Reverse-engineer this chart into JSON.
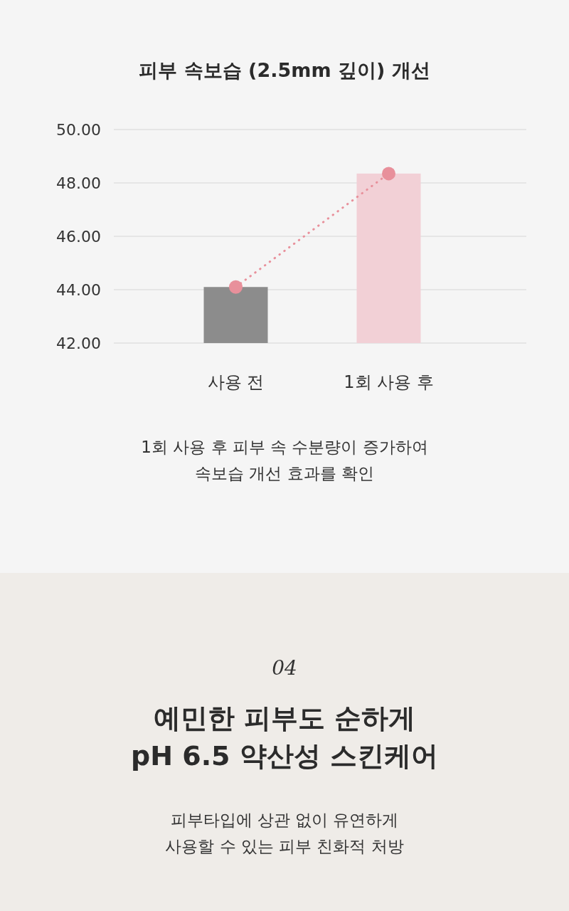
{
  "chart_data": {
    "type": "bar",
    "title": "피부 속보습 (2.5mm 깊이) 개선",
    "categories": [
      "사용 전",
      "1회 사용 후"
    ],
    "series": [
      {
        "colors": [
          "#8c8c8c",
          "#f2d0d6"
        ],
        "values": [
          44.1,
          48.35
        ]
      },
      {
        "type": "line",
        "color": "#e8909b",
        "values": [
          44.1,
          48.35
        ],
        "marker": "circle",
        "line_style": "dotted"
      }
    ],
    "ylim": [
      42,
      50
    ],
    "yticks": [
      {
        "value": 42,
        "label": "42.00"
      },
      {
        "value": 44,
        "label": "44.00"
      },
      {
        "value": 46,
        "label": "46.00"
      },
      {
        "value": 48,
        "label": "48.00"
      },
      {
        "value": 50,
        "label": "50.00"
      }
    ],
    "grid": "y",
    "annotations": [
      "1회 사용 후 피부 속 수분량이 증가하여\n속보습 개선 효과를 확인",
      "04",
      "예민한 피부도 순하게\npH 6.5 약산성 스킨케어",
      "피부타입에 상관 없이 유연하게\n사용할 수 있는 피부 친화적 처방"
    ]
  }
}
